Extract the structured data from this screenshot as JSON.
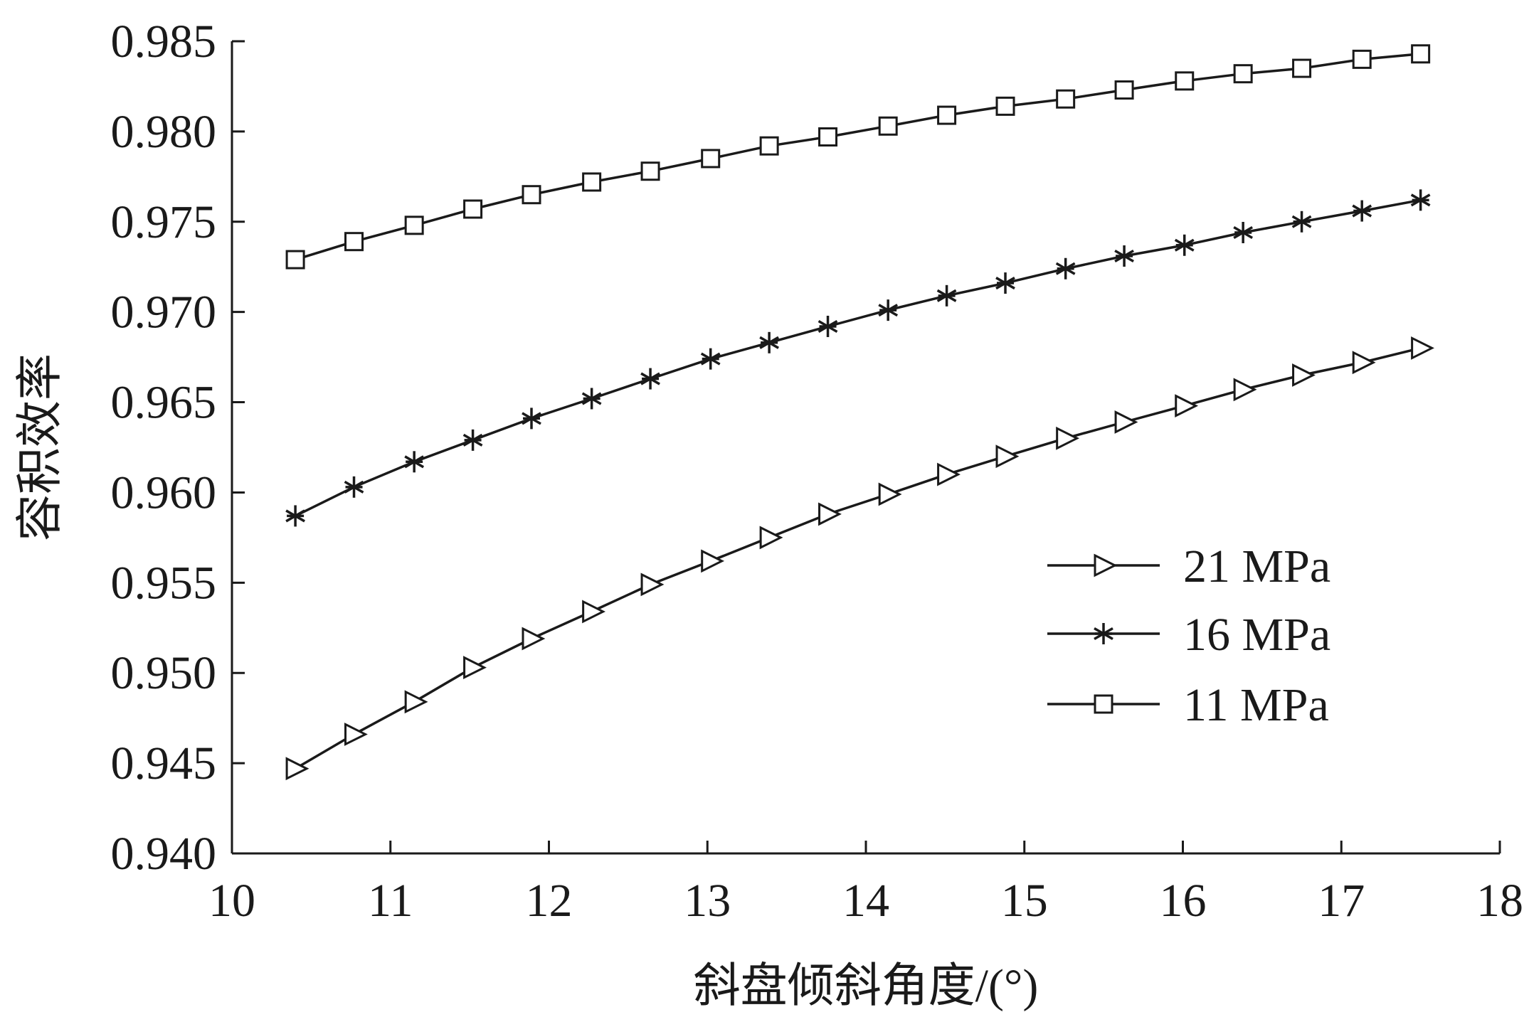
{
  "chart_data": {
    "type": "line",
    "title": "",
    "xlabel": "斜盘倾斜角度/(°)",
    "ylabel": "容积效率",
    "xlim": [
      10,
      18
    ],
    "ylim": [
      0.94,
      0.985
    ],
    "xticks": [
      "10",
      "11",
      "12",
      "13",
      "14",
      "15",
      "16",
      "17",
      "18"
    ],
    "yticks": [
      "0.940",
      "0.945",
      "0.950",
      "0.955",
      "0.960",
      "0.965",
      "0.970",
      "0.975",
      "0.980",
      "0.985"
    ],
    "grid": false,
    "legend_position": "center-right",
    "x": [
      10.4,
      10.77,
      11.15,
      11.52,
      11.89,
      12.27,
      12.64,
      13.02,
      13.39,
      13.76,
      14.14,
      14.51,
      14.88,
      15.26,
      15.63,
      16.01,
      16.38,
      16.75,
      17.13,
      17.5
    ],
    "series": [
      {
        "name": "21 MPa",
        "marker": "triangle-right",
        "values": [
          0.9447,
          0.9466,
          0.9484,
          0.9503,
          0.9519,
          0.9534,
          0.9549,
          0.9562,
          0.9575,
          0.9588,
          0.9599,
          0.961,
          0.962,
          0.963,
          0.9639,
          0.9648,
          0.9657,
          0.9665,
          0.9672,
          0.968
        ]
      },
      {
        "name": "16 MPa",
        "marker": "asterisk",
        "values": [
          0.9587,
          0.9603,
          0.9617,
          0.9629,
          0.9641,
          0.9652,
          0.9663,
          0.9674,
          0.9683,
          0.9692,
          0.9701,
          0.9709,
          0.9716,
          0.9724,
          0.9731,
          0.9737,
          0.9744,
          0.975,
          0.9756,
          0.9762
        ]
      },
      {
        "name": "11 MPa",
        "marker": "square",
        "values": [
          0.9729,
          0.9739,
          0.9748,
          0.9757,
          0.9765,
          0.9772,
          0.9778,
          0.9785,
          0.9792,
          0.9797,
          0.9803,
          0.9809,
          0.9814,
          0.9818,
          0.9823,
          0.9828,
          0.9832,
          0.9835,
          0.984,
          0.9843
        ]
      }
    ],
    "colors": {
      "line": "#1a1a1a",
      "background": "#ffffff"
    }
  }
}
